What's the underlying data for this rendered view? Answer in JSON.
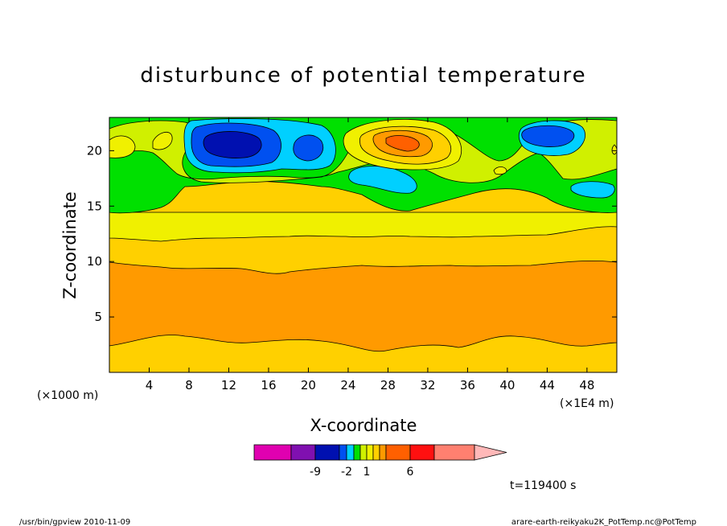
{
  "chart_data": {
    "type": "heatmap",
    "title": "disturbunce of potential temperature",
    "xlabel": "X-coordinate",
    "ylabel": "Z-coordinate",
    "x_unit_left": "(×1000 m)",
    "x_unit_right": "(×1E4 m)",
    "xlim": [
      0,
      51
    ],
    "ylim": [
      0,
      23
    ],
    "x_ticks": [
      4,
      8,
      12,
      16,
      20,
      24,
      28,
      32,
      36,
      40,
      44,
      48
    ],
    "y_ticks": [
      5,
      10,
      15,
      20
    ],
    "colorbar": {
      "colors": [
        "#e000b0",
        "#8010b0",
        "#0010b0",
        "#0050f0",
        "#00d0ff",
        "#00e000",
        "#d0f000",
        "#f0f000",
        "#ffd000",
        "#ff9a00",
        "#ff6000",
        "#ff1010",
        "#ff8070",
        "#ffb8b8"
      ],
      "labels": [
        "-9",
        "-2",
        "1",
        "6"
      ]
    },
    "time_label": "t=119400 s",
    "footer_left": "/usr/bin/gpview   2010-11-09",
    "footer_right": "arare-earth-reikyaku2K_PotTemp.nc@PotTemp"
  }
}
